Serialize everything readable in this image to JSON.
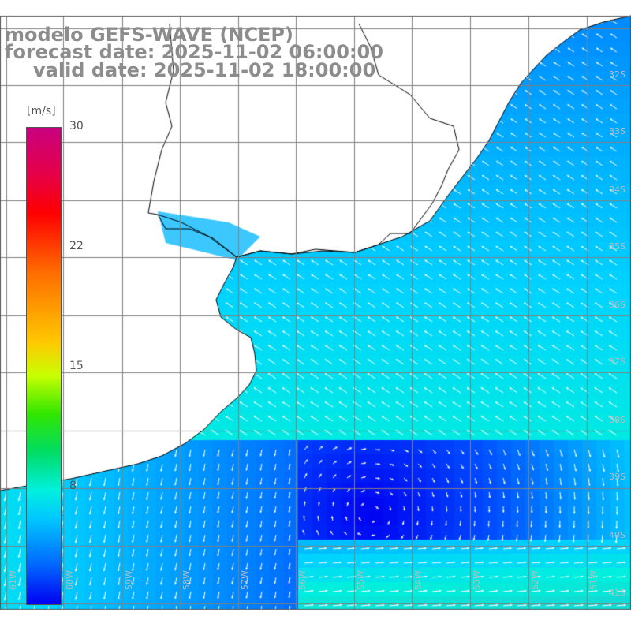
{
  "title": {
    "model": "modelo GEFS-WAVE (NCEP)",
    "forecast": "forecast date: 2025-11-02 06:00:00",
    "valid": "valid date: 2025-11-02 18:00:00"
  },
  "colorbar": {
    "unit": "[m/s]",
    "ticks": [
      "30",
      "22",
      "15",
      "8"
    ],
    "range": [
      0,
      30
    ],
    "colors": [
      "#0000f0",
      "#0064ff",
      "#00c8ff",
      "#00f0dc",
      "#00dc64",
      "#32e600",
      "#c8ff00",
      "#ffc800",
      "#ff6a00",
      "#ff0000",
      "#e60046",
      "#c8007f"
    ]
  },
  "map": {
    "lon_labels": [
      "61W",
      "60W",
      "59W",
      "58W",
      "57W",
      "56W",
      "55W",
      "54W",
      "53W",
      "52W",
      "51W"
    ],
    "lat_labels": [
      "32S",
      "33S",
      "34S",
      "35S",
      "36S",
      "37S",
      "38S",
      "39S",
      "40S",
      "41S"
    ],
    "land_color": "#ffffff",
    "grid_color": "#808080",
    "arrow_color": "#ffffff"
  }
}
